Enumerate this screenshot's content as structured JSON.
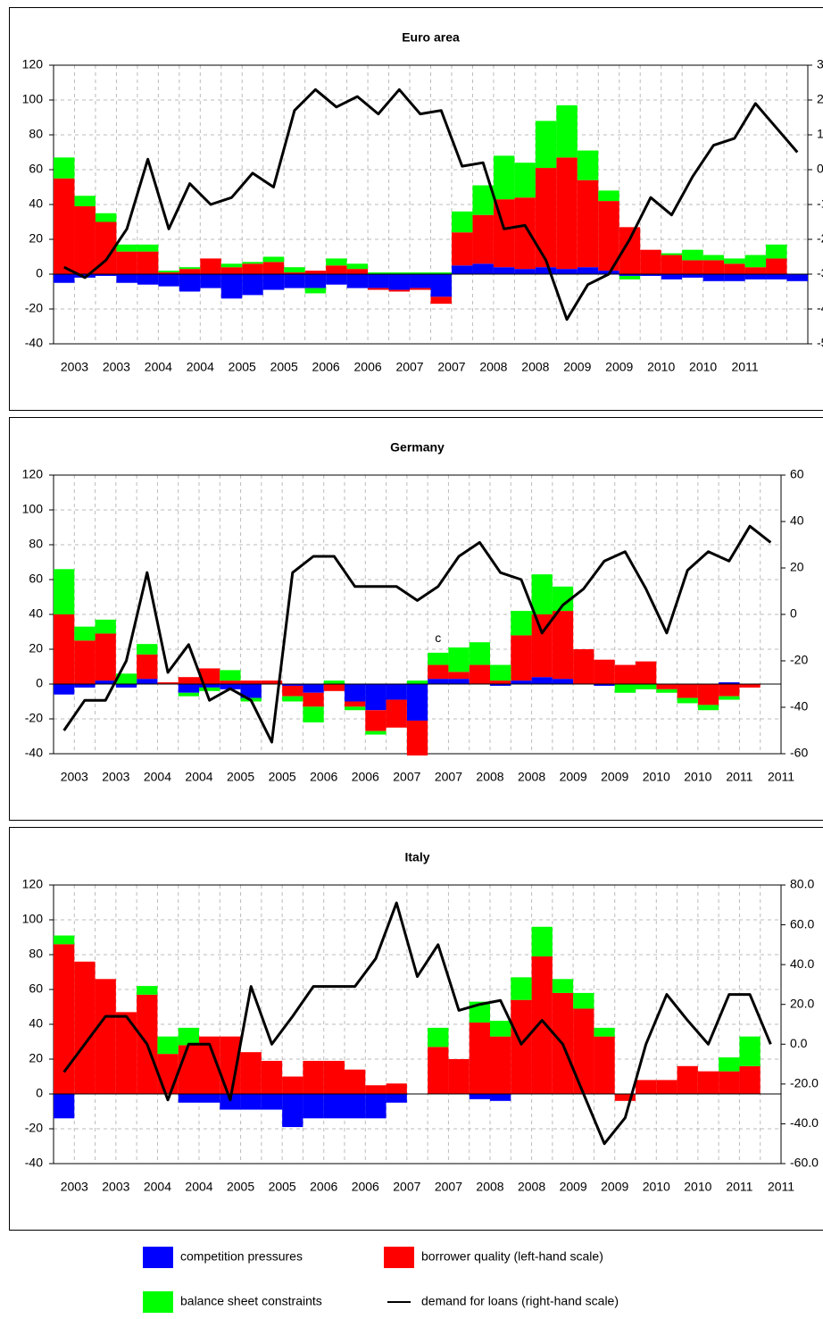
{
  "chart_data": [
    {
      "type": "combo",
      "title": "Euro area",
      "stacked": true,
      "categories": [
        "2003",
        null,
        "2003",
        null,
        "2004",
        null,
        "2004",
        null,
        "2005",
        null,
        "2005",
        null,
        "2006",
        null,
        "2006",
        null,
        "2007",
        null,
        "2007",
        null,
        "2008",
        null,
        "2008",
        null,
        "2009",
        null,
        "2009",
        null,
        "2010",
        null,
        "2010",
        null,
        "2011",
        null,
        null,
        null
      ],
      "ylim": [
        -40,
        120
      ],
      "yticks": [
        -40,
        -20,
        0,
        20,
        40,
        60,
        80,
        100,
        120
      ],
      "y2lim": [
        -50,
        30
      ],
      "y2ticks": [
        -50,
        -40,
        -30,
        -20,
        -10,
        0,
        10,
        20,
        30
      ],
      "grid": true,
      "series": [
        {
          "name": "competition pressures",
          "type": "bar",
          "color": "#0000ff",
          "values": [
            -5,
            -2,
            -1,
            -5,
            -6,
            -7,
            -10,
            -8,
            -14,
            -12,
            -9,
            -8,
            -8,
            -6,
            -8,
            -8,
            -9,
            -8,
            -13,
            5,
            6,
            4,
            3,
            4,
            3,
            4,
            2,
            -1,
            -1,
            -3,
            -2,
            -4,
            -4,
            -3,
            -3,
            -4
          ]
        },
        {
          "name": "borrower quality (left-hand scale)",
          "type": "bar",
          "color": "#ff0000",
          "values": [
            55,
            39,
            30,
            13,
            13,
            1,
            3,
            9,
            4,
            6,
            7,
            1,
            2,
            5,
            3,
            -1,
            -1,
            -1,
            -4,
            19,
            28,
            39,
            41,
            57,
            64,
            50,
            40,
            27,
            14,
            11,
            8,
            8,
            6,
            4,
            9,
            0
          ]
        },
        {
          "name": "balance sheet constraints",
          "type": "bar",
          "color": "#00ff00",
          "values": [
            12,
            6,
            5,
            4,
            4,
            1,
            1,
            0,
            2,
            1,
            3,
            3,
            -3,
            4,
            3,
            1,
            1,
            1,
            1,
            12,
            17,
            25,
            20,
            27,
            30,
            17,
            6,
            -2,
            0,
            1,
            6,
            3,
            3,
            7,
            8,
            0
          ]
        },
        {
          "name": "demand for loans (right-hand scale)",
          "type": "line",
          "axis": "y2",
          "color": "#000000",
          "values": [
            -28,
            -31,
            -26,
            -17,
            3,
            -17,
            -4,
            -10,
            -8,
            -1,
            -5,
            17,
            23,
            18,
            21,
            16,
            23,
            16,
            17,
            1,
            2,
            -17,
            -16,
            -26,
            -43,
            -33,
            -30,
            -20,
            -8,
            -13,
            -2,
            7,
            9,
            19,
            12,
            5
          ]
        }
      ]
    },
    {
      "type": "combo",
      "title": "Germany",
      "stacked": true,
      "annotation": "c",
      "categories": [
        "2003",
        null,
        "2003",
        null,
        "2004",
        null,
        "2004",
        null,
        "2005",
        null,
        "2005",
        null,
        "2006",
        null,
        "2006",
        null,
        "2007",
        null,
        "2007",
        null,
        "2008",
        null,
        "2008",
        null,
        "2009",
        null,
        "2009",
        null,
        "2010",
        null,
        "2010",
        null,
        "2011",
        null,
        "2011"
      ],
      "ylim": [
        -40,
        120
      ],
      "yticks": [
        -40,
        -20,
        0,
        20,
        40,
        60,
        80,
        100,
        120
      ],
      "y2lim": [
        -60,
        60
      ],
      "y2ticks": [
        -60,
        -40,
        -20,
        0,
        20,
        40,
        60
      ],
      "grid": true,
      "series": [
        {
          "type": "bar",
          "color": "#0000ff",
          "values": [
            -6,
            -2,
            2,
            -2,
            3,
            0,
            -5,
            -2,
            -3,
            -8,
            0,
            -1,
            -5,
            0,
            -10,
            -15,
            -9,
            -21,
            3,
            3,
            0,
            -1,
            2,
            4,
            3,
            0,
            -1,
            0,
            0,
            0,
            0,
            0,
            1,
            0,
            0
          ]
        },
        {
          "type": "bar",
          "color": "#ff0000",
          "values": [
            40,
            25,
            27,
            0,
            14,
            1,
            4,
            9,
            2,
            2,
            2,
            -6,
            -8,
            -4,
            -3,
            -12,
            -16,
            -20,
            8,
            4,
            11,
            2,
            26,
            36,
            39,
            20,
            14,
            11,
            13,
            -3,
            -8,
            -12,
            -7,
            -2,
            0
          ]
        },
        {
          "type": "bar",
          "color": "#00ff00",
          "values": [
            26,
            8,
            8,
            6,
            6,
            0,
            -2,
            -2,
            6,
            -2,
            0,
            -3,
            -9,
            2,
            -2,
            -2,
            0,
            2,
            7,
            14,
            13,
            9,
            14,
            23,
            14,
            0,
            0,
            -5,
            -3,
            -2,
            -3,
            -3,
            -2,
            0,
            0
          ]
        },
        {
          "type": "line",
          "axis": "y2",
          "color": "#000000",
          "values": [
            -50,
            -37,
            -37,
            -20,
            18,
            -25,
            -13,
            -37,
            -32,
            -37,
            -55,
            18,
            25,
            25,
            12,
            12,
            12,
            6,
            12,
            25,
            31,
            18,
            15,
            -8,
            4,
            11,
            23,
            27,
            11,
            -8,
            19,
            27,
            23,
            38,
            31
          ]
        }
      ]
    },
    {
      "type": "combo",
      "title": "Italy",
      "stacked": true,
      "categories": [
        "2003",
        null,
        "2003",
        null,
        "2004",
        null,
        "2004",
        null,
        "2005",
        null,
        "2005",
        null,
        "2006",
        null,
        "2006",
        null,
        "2007",
        null,
        "2007",
        null,
        "2008",
        null,
        "2008",
        null,
        "2009",
        null,
        "2009",
        null,
        "2010",
        null,
        "2010",
        null,
        "2011",
        null,
        "2011"
      ],
      "ylim": [
        -40,
        120
      ],
      "yticks": [
        -40,
        -20,
        0,
        20,
        40,
        60,
        80,
        100,
        120
      ],
      "y2lim": [
        -60,
        80
      ],
      "y2ticks": [
        {
          "value": -60,
          "label": "-60.0"
        },
        {
          "value": -40,
          "label": "-40.0"
        },
        {
          "value": -20,
          "label": "-20.0"
        },
        {
          "value": 0,
          "label": "0.0"
        },
        {
          "value": 20,
          "label": "20.0"
        },
        {
          "value": 40,
          "label": "40.0"
        },
        {
          "value": 60,
          "label": "60.0"
        },
        {
          "value": 80,
          "label": "80.0"
        }
      ],
      "grid": true,
      "series": [
        {
          "type": "bar",
          "color": "#0000ff",
          "values": [
            -14,
            0,
            0,
            0,
            0,
            0,
            -5,
            -5,
            -9,
            -9,
            -9,
            -19,
            -14,
            -14,
            -14,
            -14,
            -5,
            0,
            0,
            0,
            -3,
            -4,
            0,
            0,
            0,
            0,
            0,
            0,
            0,
            0,
            0,
            0,
            0,
            0,
            0
          ]
        },
        {
          "type": "bar",
          "color": "#ff0000",
          "values": [
            86,
            76,
            66,
            47,
            57,
            23,
            28,
            33,
            33,
            24,
            19,
            10,
            19,
            19,
            14,
            5,
            6,
            0,
            27,
            20,
            41,
            33,
            54,
            79,
            58,
            49,
            33,
            -4,
            8,
            8,
            16,
            13,
            13,
            16,
            0
          ]
        },
        {
          "type": "bar",
          "color": "#00ff00",
          "values": [
            5,
            0,
            0,
            0,
            5,
            10,
            10,
            0,
            0,
            0,
            0,
            0,
            0,
            0,
            0,
            0,
            0,
            0,
            11,
            0,
            12,
            9,
            13,
            17,
            8,
            9,
            5,
            0,
            0,
            0,
            0,
            0,
            8,
            17,
            0
          ]
        },
        {
          "type": "line",
          "axis": "y2",
          "color": "#000000",
          "values": [
            -14,
            0,
            14,
            14,
            0,
            -28,
            0,
            0,
            -28,
            29,
            0,
            14,
            29,
            29,
            29,
            43,
            71,
            34,
            50,
            17,
            20,
            22,
            0,
            12,
            0,
            -25,
            -50,
            -37,
            0,
            25,
            12,
            0,
            25,
            25,
            0
          ]
        }
      ]
    }
  ]
}
